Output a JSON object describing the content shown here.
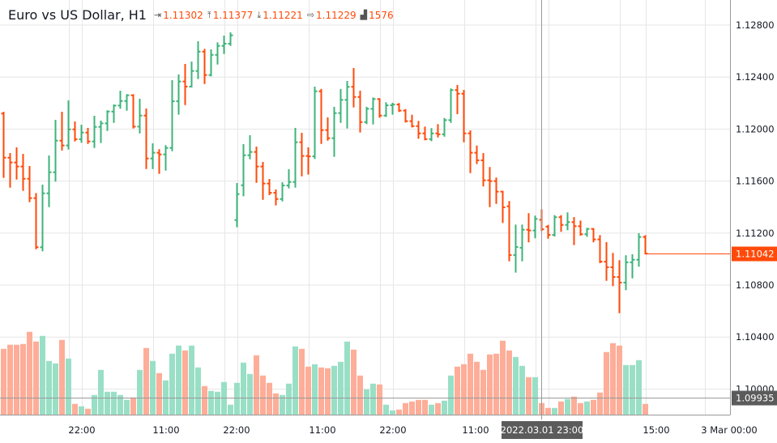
{
  "header": {
    "title": "Euro vs US Dollar, H1",
    "open": {
      "icon": "open-icon",
      "value": "1.11302"
    },
    "high": {
      "icon": "high-icon",
      "value": "1.11377"
    },
    "low": {
      "icon": "low-icon",
      "value": "1.11221"
    },
    "close": {
      "icon": "close-icon",
      "value": "1.11229"
    },
    "volume": {
      "icon": "volume-icon",
      "value": "1576"
    }
  },
  "crosshair": {
    "time_label": "2022.03.01 23:00",
    "price_label": "1.09935",
    "price": 1.09935
  },
  "last_price": {
    "label": "1.11042",
    "value": 1.11042
  },
  "colors": {
    "up": "#3db37a",
    "down": "#ff4a0a",
    "up_volume": "#99dfc6",
    "down_volume": "#fdad98",
    "grid": "#e6e6e6",
    "last_price_bg": "#ff4a0a",
    "crosshair_label_bg": "#5b5b5b"
  },
  "chart_data": {
    "type": "ohlc",
    "title": "Euro vs US Dollar, H1",
    "ylim": [
      1.0975,
      1.1297
    ],
    "grid": true,
    "y_ticks": [
      "1.12800",
      "1.12400",
      "1.12000",
      "1.11600",
      "1.11200",
      "1.10800",
      "1.10400",
      "1.10000"
    ],
    "y_tick_values": [
      1.128,
      1.124,
      1.12,
      1.116,
      1.112,
      1.108,
      1.104,
      1.1
    ],
    "x_ticks": [
      "22:00",
      "11:00",
      "22:00",
      "11:00",
      "22:00",
      "11:00",
      "15:00",
      "3 Mar 00:00"
    ],
    "series": [
      {
        "ohlc": [
          [
            1.12119,
            1.12127,
            1.11631,
            1.1178
          ],
          [
            1.1178,
            1.11809,
            1.11556,
            1.11743
          ],
          [
            1.11743,
            1.11853,
            1.11618,
            1.11712
          ],
          [
            1.11712,
            1.11803,
            1.11531,
            1.11618
          ],
          [
            1.11618,
            1.1171,
            1.11444,
            1.11469
          ],
          [
            1.11469,
            1.11502,
            1.11082,
            1.11091
          ],
          [
            1.11091,
            1.11566,
            1.11066,
            1.11506
          ],
          [
            1.11506,
            1.11791,
            1.11406,
            1.11668
          ],
          [
            1.11668,
            1.12065,
            1.11602,
            1.11911
          ],
          [
            1.11911,
            1.12127,
            1.11842,
            1.11874
          ],
          [
            1.11874,
            1.12214,
            1.11849,
            1.11998
          ],
          [
            1.11998,
            1.12052,
            1.11911,
            1.11922
          ],
          [
            1.11922,
            1.12027,
            1.11901,
            1.11973
          ],
          [
            1.11973,
            1.12003,
            1.11892,
            1.11905
          ],
          [
            1.11905,
            1.12096,
            1.11861,
            1.12017
          ],
          [
            1.12017,
            1.12059,
            1.11899,
            1.12044
          ],
          [
            1.12044,
            1.12138,
            1.11992,
            1.12135
          ],
          [
            1.12135,
            1.12183,
            1.12054,
            1.12181
          ],
          [
            1.12181,
            1.12289,
            1.12163,
            1.12216
          ],
          [
            1.12216,
            1.12262,
            1.12148,
            1.1226
          ],
          [
            1.1226,
            1.12262,
            1.12011,
            1.12019
          ],
          [
            1.12019,
            1.12227,
            1.11973,
            1.12104
          ],
          [
            1.12104,
            1.12152,
            1.11699,
            1.11774
          ],
          [
            1.11774,
            1.11884,
            1.11699,
            1.11818
          ],
          [
            1.11818,
            1.11839,
            1.11662,
            1.11805
          ],
          [
            1.11805,
            1.1187,
            1.11687,
            1.11855
          ],
          [
            1.11855,
            1.1237,
            1.11836,
            1.12214
          ],
          [
            1.12214,
            1.12414,
            1.12117,
            1.12366
          ],
          [
            1.12366,
            1.12495,
            1.12191,
            1.12327
          ],
          [
            1.12327,
            1.12513,
            1.12327,
            1.12447
          ],
          [
            1.12447,
            1.12669,
            1.12391,
            1.12596
          ],
          [
            1.12596,
            1.12611,
            1.12353,
            1.12416
          ],
          [
            1.12416,
            1.12607,
            1.12412,
            1.12571
          ],
          [
            1.12571,
            1.12661,
            1.12503,
            1.1264
          ],
          [
            1.1264,
            1.12713,
            1.12584,
            1.12657
          ],
          [
            1.12657,
            1.12738,
            1.12646,
            1.12721
          ],
          [
            1.113,
            1.11579,
            1.11251,
            1.115
          ],
          [
            1.11568,
            1.11878,
            1.1149,
            1.11799
          ],
          [
            1.11799,
            1.11947,
            1.11774,
            1.11824
          ],
          [
            1.11824,
            1.11859,
            1.11593,
            1.11712
          ],
          [
            1.11712,
            1.11741,
            1.11462,
            1.11581
          ],
          [
            1.11581,
            1.1161,
            1.11498,
            1.1151
          ],
          [
            1.1151,
            1.11529,
            1.11419,
            1.11462
          ],
          [
            1.11462,
            1.11585,
            1.1145,
            1.11566
          ],
          [
            1.11566,
            1.11685,
            1.1155,
            1.11593
          ],
          [
            1.11593,
            1.12003,
            1.11556,
            1.11899
          ],
          [
            1.11899,
            1.11965,
            1.11643,
            1.11793
          ],
          [
            1.11793,
            1.11853,
            1.11656,
            1.1179
          ],
          [
            1.1179,
            1.1232,
            1.11776,
            1.12291
          ],
          [
            1.12291,
            1.12303,
            1.11892,
            1.11992
          ],
          [
            1.11992,
            1.12084,
            1.11917,
            1.1193
          ],
          [
            1.1193,
            1.12165,
            1.11793,
            1.12123
          ],
          [
            1.12123,
            1.12302,
            1.12054,
            1.12225
          ],
          [
            1.12225,
            1.12364,
            1.12011,
            1.12325
          ],
          [
            1.12325,
            1.12464,
            1.12173,
            1.12247
          ],
          [
            1.12247,
            1.12289,
            1.1198,
            1.12054
          ],
          [
            1.12054,
            1.12165,
            1.12044,
            1.12156
          ],
          [
            1.12156,
            1.12237,
            1.12042,
            1.12231
          ],
          [
            1.12231,
            1.12231,
            1.12094,
            1.12104
          ],
          [
            1.12104,
            1.122,
            1.121,
            1.12183
          ],
          [
            1.12183,
            1.12196,
            1.12117,
            1.12189
          ],
          [
            1.12189,
            1.12194,
            1.12138,
            1.12142
          ],
          [
            1.12142,
            1.12148,
            1.12057,
            1.12061
          ],
          [
            1.12061,
            1.12104,
            1.12019,
            1.12023
          ],
          [
            1.12023,
            1.12057,
            1.11932,
            1.11967
          ],
          [
            1.11967,
            1.12013,
            1.1192,
            1.11923
          ],
          [
            1.11923,
            1.12001,
            1.11913,
            1.11967
          ],
          [
            1.11967,
            1.12032,
            1.11942,
            1.1196
          ],
          [
            1.1196,
            1.12079,
            1.11948,
            1.12069
          ],
          [
            1.12069,
            1.12306,
            1.12054,
            1.123
          ],
          [
            1.123,
            1.12333,
            1.12121,
            1.12272
          ],
          [
            1.12272,
            1.12295,
            1.11905,
            1.11967
          ],
          [
            1.11967,
            1.11984,
            1.11668,
            1.11818
          ],
          [
            1.11818,
            1.11867,
            1.11737,
            1.1176
          ],
          [
            1.1176,
            1.11809,
            1.11565,
            1.11606
          ],
          [
            1.11606,
            1.11702,
            1.11406,
            1.116
          ],
          [
            1.116,
            1.11621,
            1.11431,
            1.11519
          ],
          [
            1.11519,
            1.11519,
            1.11284,
            1.11398
          ],
          [
            1.11406,
            1.1144,
            1.10989,
            1.11031
          ],
          [
            1.11031,
            1.11259,
            1.10902,
            1.11093
          ],
          [
            1.11087,
            1.11259,
            1.10989,
            1.11226
          ],
          [
            1.11226,
            1.11347,
            1.11135,
            1.1122
          ],
          [
            1.1122,
            1.11328,
            1.11166,
            1.11309
          ],
          [
            1.11302,
            1.11377,
            1.11221,
            1.11229
          ],
          [
            1.11249,
            1.11257,
            1.11163,
            1.11186
          ],
          [
            1.11186,
            1.11332,
            1.1118,
            1.11322
          ],
          [
            1.11322,
            1.11332,
            1.11216,
            1.11263
          ],
          [
            1.11263,
            1.11353,
            1.11228,
            1.11284
          ],
          [
            1.11284,
            1.11317,
            1.11114,
            1.11253
          ],
          [
            1.11253,
            1.1129,
            1.11186,
            1.11191
          ],
          [
            1.11191,
            1.11234,
            1.11178,
            1.11232
          ],
          [
            1.11232,
            1.11232,
            1.11135,
            1.11151
          ],
          [
            1.11151,
            1.11178,
            1.10975,
            1.1098
          ],
          [
            1.1098,
            1.11124,
            1.10839,
            1.10937
          ],
          [
            1.10937,
            1.11041,
            1.10798,
            1.10862
          ],
          [
            1.10862,
            1.10985,
            1.1059,
            1.10819
          ],
          [
            1.10819,
            1.11023,
            1.10767,
            1.10975
          ],
          [
            1.10975,
            1.11031,
            1.10858,
            1.10995
          ],
          [
            1.10995,
            1.11193,
            1.10948,
            1.1117
          ],
          [
            1.1117,
            1.11178,
            1.11042,
            1.11042
          ]
        ],
        "volume": [
          8940,
          9490,
          9490,
          9600,
          11250,
          9930,
          10700,
          7290,
          6960,
          10150,
          7620,
          1460,
          1130,
          800,
          2670,
          6080,
          3110,
          3110,
          2670,
          2010,
          2340,
          6080,
          9050,
          7290,
          5640,
          4650,
          8280,
          9380,
          8720,
          9380,
          6410,
          3880,
          3220,
          3110,
          4430,
          1350,
          4320,
          7070,
          5530,
          8060,
          5310,
          4320,
          2890,
          2670,
          4210,
          9270,
          8940,
          6520,
          6850,
          6410,
          6300,
          6630,
          7180,
          9930,
          8830,
          5310,
          3440,
          4210,
          4100,
          1350,
          580,
          690,
          1570,
          1790,
          2010,
          2010,
          1350,
          1570,
          1900,
          5310,
          6520,
          6850,
          8280,
          7180,
          6080,
          8170,
          8280,
          10040,
          8720,
          7840,
          6630,
          5090,
          5090,
          1576,
          910,
          910,
          1790,
          2120,
          2450,
          1570,
          1790,
          2010,
          3000,
          8500,
          9710,
          9380,
          6740,
          6740,
          7400,
          1460
        ]
      }
    ]
  }
}
